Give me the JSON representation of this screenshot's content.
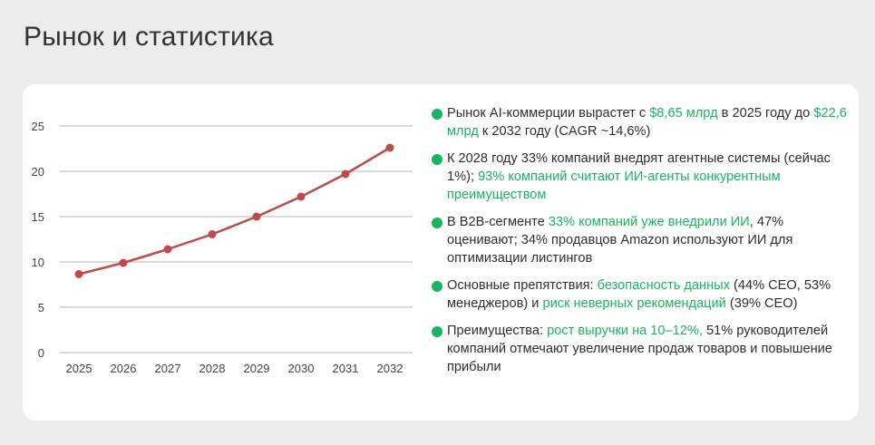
{
  "page": {
    "title": "Рынок и статистика"
  },
  "colors": {
    "accent": "#18b460",
    "line": "#c0494a",
    "grid": "#b5b5b5",
    "card": "#ffffff",
    "background": "#ececec"
  },
  "chart_data": {
    "type": "line",
    "title": "",
    "xlabel": "",
    "ylabel": "",
    "x": [
      "2025",
      "2026",
      "2027",
      "2028",
      "2029",
      "2030",
      "2031",
      "2032"
    ],
    "series": [
      {
        "values": [
          8.65,
          9.9,
          11.4,
          13.05,
          15.0,
          17.2,
          19.7,
          22.6
        ]
      }
    ],
    "ylim": [
      0,
      25
    ],
    "yticks": [
      "0",
      "5",
      "10",
      "15",
      "20",
      "25"
    ],
    "grid": "horizontal",
    "legend": "none"
  },
  "bullets": [
    {
      "icon": "green-dot-icon",
      "parts": [
        {
          "text": "Рынок AI-коммерции вырастет с ",
          "hl": false
        },
        {
          "text": "$8,65 млрд",
          "hl": true
        },
        {
          "text": " в 2025 году до ",
          "hl": false
        },
        {
          "text": "$22,6 млрд",
          "hl": true
        },
        {
          "text": " к 2032 году (CAGR ~14,6%)",
          "hl": false
        }
      ]
    },
    {
      "icon": "green-dot-icon",
      "parts": [
        {
          "text": "К 2028 году 33% компаний внедрят агентные системы (сейчас 1%); ",
          "hl": false
        },
        {
          "text": "93% компаний считают ИИ-агенты конкурентным преимуществом",
          "hl": true
        }
      ]
    },
    {
      "icon": "green-dot-icon",
      "parts": [
        {
          "text": "В B2B-сегменте ",
          "hl": false
        },
        {
          "text": "33% компаний уже внедрили ИИ",
          "hl": true
        },
        {
          "text": ", 47% оценивают; 34% продавцов Amazon используют ИИ для оптимизации листингов",
          "hl": false
        }
      ]
    },
    {
      "icon": "green-dot-icon",
      "parts": [
        {
          "text": "Основные препятствия: ",
          "hl": false
        },
        {
          "text": "безопасность данных",
          "hl": true
        },
        {
          "text": " (44% CEO, 53% менеджеров) и ",
          "hl": false
        },
        {
          "text": "риск неверных рекомендаций",
          "hl": true
        },
        {
          "text": " (39% CEO)",
          "hl": false
        }
      ]
    },
    {
      "icon": "green-dot-icon",
      "parts": [
        {
          "text": "Преимущества: ",
          "hl": false
        },
        {
          "text": "рост выручки на 10–12%,",
          "hl": true
        },
        {
          "text": " 51% руководителей компаний отмечают увеличение продаж товаров и повышение прибыли",
          "hl": false
        }
      ]
    }
  ]
}
